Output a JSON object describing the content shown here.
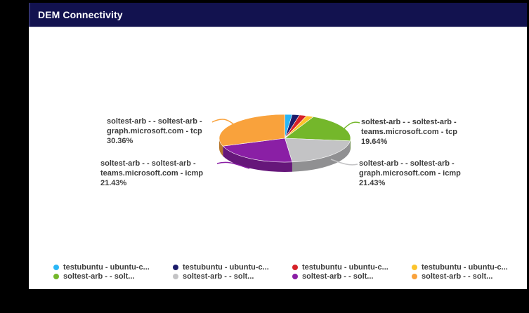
{
  "window": {
    "title": "DEM Connectivity"
  },
  "theme": {
    "title_bar_bg": "#12124f",
    "title_color": "#ffffff",
    "panel_bg": "#ffffff",
    "canvas_bg": "#000000",
    "label_color": "#3d3d3d"
  },
  "chart_data": {
    "type": "pie",
    "style": "3d",
    "title": "DEM Connectivity",
    "legend_position": "bottom",
    "start_angle_deg": 0,
    "direction": "clockwise",
    "slices": [
      {
        "name": "testubuntu - ubuntu-c...",
        "value": 1.79,
        "percent_label": "",
        "color": "#29b6f6"
      },
      {
        "name": "testubuntu - ubuntu-c...",
        "value": 1.79,
        "percent_label": "",
        "color": "#1c1c6b"
      },
      {
        "name": "testubuntu - ubuntu-c...",
        "value": 1.79,
        "percent_label": "",
        "color": "#d62229"
      },
      {
        "name": "testubuntu - ubuntu-c...",
        "value": 1.79,
        "percent_label": "",
        "color": "#fcc42c"
      },
      {
        "name": "soltest-arb - - soltest-arb - teams.microsoft.com - tcp",
        "value": 19.64,
        "percent_label": "19.64%",
        "color": "#74b72b"
      },
      {
        "name": "soltest-arb - - soltest-arb - graph.microsoft.com - icmp",
        "value": 21.43,
        "percent_label": "21.43%",
        "color": "#c3c3c5"
      },
      {
        "name": "soltest-arb - - soltest-arb - teams.microsoft.com - icmp",
        "value": 21.43,
        "percent_label": "21.43%",
        "color": "#8a1fa5"
      },
      {
        "name": "soltest-arb - - soltest-arb - graph.microsoft.com - tcp",
        "value": 30.36,
        "percent_label": "30.36%",
        "color": "#f9a23c"
      }
    ]
  },
  "callouts": {
    "left_top": {
      "line1": "soltest-arb - - soltest-arb -",
      "line2": "graph.microsoft.com - tcp",
      "percent": "30.36%"
    },
    "left_bottom": {
      "line1": "soltest-arb - - soltest-arb -",
      "line2": "teams.microsoft.com - icmp",
      "percent": "21.43%"
    },
    "right_top": {
      "line1": "soltest-arb - - soltest-arb -",
      "line2": "teams.microsoft.com - tcp",
      "percent": "19.64%"
    },
    "right_bottom": {
      "line1": "soltest-arb - - soltest-arb -",
      "line2": "graph.microsoft.com - icmp",
      "percent": "21.43%"
    }
  },
  "legend": {
    "items": [
      {
        "label": "testubuntu - ubuntu-c...",
        "color": "#29b6f6"
      },
      {
        "label": "testubuntu - ubuntu-c...",
        "color": "#1c1c6b"
      },
      {
        "label": "testubuntu - ubuntu-c...",
        "color": "#d62229"
      },
      {
        "label": "testubuntu - ubuntu-c...",
        "color": "#fcc42c"
      },
      {
        "label": "soltest-arb - - solt...",
        "color": "#74b72b"
      },
      {
        "label": "soltest-arb - - solt...",
        "color": "#c3c3c5"
      },
      {
        "label": "soltest-arb - - solt...",
        "color": "#8a1fa5"
      },
      {
        "label": "soltest-arb - - solt...",
        "color": "#f9a23c"
      }
    ]
  }
}
